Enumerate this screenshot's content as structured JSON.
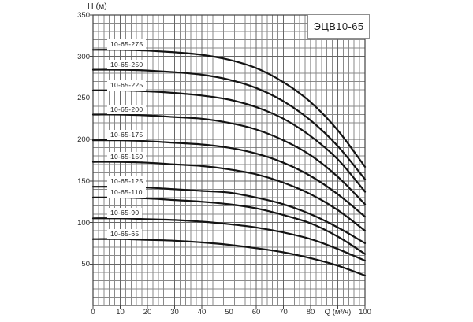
{
  "title": "ЭЦВ10-65",
  "colors": {
    "background": "#ffffff",
    "grid_minor": "#8a8a8a",
    "grid_major": "#666666",
    "plot_border": "#444444",
    "curve": "#141414",
    "text": "#2a2a2a",
    "label_bg": "#ffffff",
    "title_border": "#8f8f8f"
  },
  "chart_data": {
    "type": "line",
    "title": "ЭЦВ10-65",
    "xlabel": "Q (м³/ч)",
    "ylabel": "H (м)",
    "xlim": [
      0,
      100
    ],
    "ylim": [
      0,
      350
    ],
    "grid": {
      "x_minor_step": 2,
      "x_major_step": 10,
      "y_minor_step": 10,
      "y_major_step": 50
    },
    "x_tick_positions": [
      0,
      10,
      20,
      30,
      40,
      50,
      60,
      70,
      80,
      90,
      100
    ],
    "x_tick_labels": [
      "0",
      "10",
      "20",
      "30",
      "40",
      "50",
      "60",
      "70",
      "80",
      "Q (м³/ч)",
      "100"
    ],
    "y_tick_positions": [
      50,
      100,
      150,
      200,
      250,
      300,
      350
    ],
    "y_tick_labels": [
      "50",
      "100",
      "150",
      "200",
      "250",
      "300",
      "350"
    ],
    "x": [
      0,
      10,
      20,
      30,
      40,
      50,
      60,
      70,
      80,
      90,
      100
    ],
    "series": [
      {
        "name": "10-65-275",
        "values": [
          308,
          308,
          307,
          305,
          302,
          296,
          286,
          269,
          245,
          211,
          167
        ]
      },
      {
        "name": "10-65-250",
        "values": [
          284,
          284,
          283,
          281,
          278,
          272,
          262,
          246,
          223,
          192,
          152
        ]
      },
      {
        "name": "10-65-225",
        "values": [
          259,
          259,
          258,
          256,
          253,
          248,
          239,
          225,
          204,
          176,
          137
        ]
      },
      {
        "name": "10-65-200",
        "values": [
          230,
          230,
          229,
          227,
          225,
          220,
          212,
          199,
          181,
          155,
          122
        ]
      },
      {
        "name": "10-65-175",
        "values": [
          199,
          199,
          198,
          196,
          194,
          190,
          183,
          172,
          156,
          134,
          107
        ]
      },
      {
        "name": "10-65-150",
        "values": [
          173,
          173,
          172,
          170,
          168,
          164,
          158,
          148,
          134,
          115,
          90
        ]
      },
      {
        "name": "10-65-125",
        "values": [
          143,
          143,
          142,
          140,
          138,
          136,
          130,
          122,
          110,
          94,
          75
        ]
      },
      {
        "name": "10-65-110",
        "values": [
          130,
          130,
          129,
          127,
          125,
          122,
          117,
          109,
          99,
          83,
          62
        ]
      },
      {
        "name": "10-65-90",
        "values": [
          105,
          105,
          104,
          103,
          101,
          98,
          94,
          88,
          80,
          68,
          54
        ]
      },
      {
        "name": "10-65-65",
        "values": [
          80,
          80,
          79,
          78,
          76,
          73,
          69,
          64,
          57,
          48,
          36
        ]
      }
    ]
  }
}
